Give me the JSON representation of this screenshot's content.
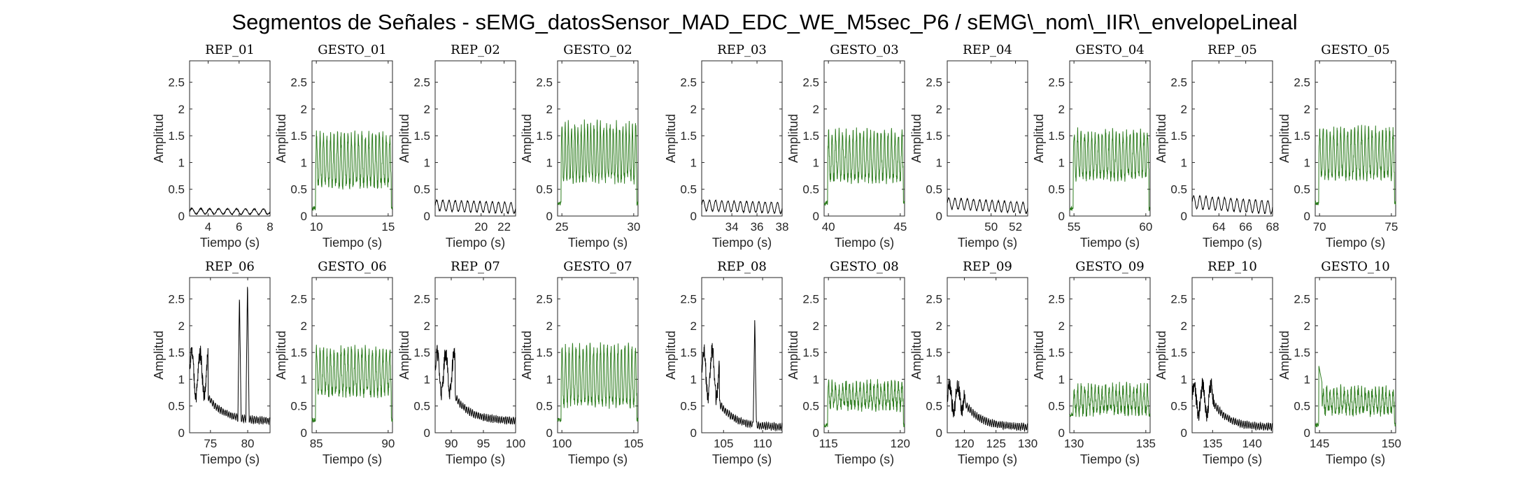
{
  "title": "Segmentos de Señales - sEMG_datosSensor_MAD_EDC_WE_M5sec_P6 / sEMG\\_nom\\_IIR\\_envelopeLineal",
  "colors": {
    "rep": "#000000",
    "gesto": "#2e7d1f"
  },
  "chart_data": [
    {
      "type": "line",
      "title": "REP_01",
      "kind": "rep",
      "xlabel": "Tiempo (s)",
      "ylabel": "Amplitud",
      "xlim": [
        2.8,
        8
      ],
      "ylim": [
        0,
        2.9
      ],
      "xticks": [
        "4",
        "6",
        "8"
      ],
      "yticks": [
        "0",
        "0.5",
        "1",
        "1.5",
        "2",
        "2.5"
      ],
      "signal": {
        "base": 0.09,
        "amp": 0.05,
        "cycles": 9,
        "decay_to": 0.08
      }
    },
    {
      "type": "line",
      "title": "GESTO_01",
      "kind": "gesto",
      "xlabel": "Tiempo (s)",
      "ylabel": "Amplitud",
      "xlim": [
        9.7,
        15.3
      ],
      "ylim": [
        0,
        2.9
      ],
      "xticks": [
        "10",
        "15"
      ],
      "yticks": [
        "0",
        "0.5",
        "1",
        "1.5",
        "2",
        "2.5"
      ],
      "signal": {
        "low": 0.6,
        "high": 1.5,
        "cycles": 22,
        "edge": 0.1
      }
    },
    {
      "type": "line",
      "title": "REP_02",
      "kind": "rep",
      "xlabel": "Tiempo (s)",
      "ylabel": "Amplitud",
      "xlim": [
        16,
        23
      ],
      "ylim": [
        0,
        2.9
      ],
      "xticks": [
        "20",
        "22"
      ],
      "yticks": [
        "0",
        "0.5",
        "1",
        "1.5",
        "2",
        "2.5"
      ],
      "signal": {
        "base": 0.2,
        "amp": 0.1,
        "cycles": 13,
        "decay_to": 0.15
      }
    },
    {
      "type": "line",
      "title": "GESTO_02",
      "kind": "gesto",
      "xlabel": "Tiempo (s)",
      "ylabel": "Amplitud",
      "xlim": [
        24.7,
        30.3
      ],
      "ylim": [
        0,
        2.9
      ],
      "xticks": [
        "25",
        "30"
      ],
      "yticks": [
        "0",
        "0.5",
        "1",
        "1.5",
        "2",
        "2.5"
      ],
      "signal": {
        "low": 0.7,
        "high": 1.7,
        "cycles": 24,
        "edge": 0.2
      }
    },
    {
      "type": "line",
      "title": "REP_03",
      "kind": "rep",
      "xlabel": "Tiempo (s)",
      "ylabel": "Amplitud",
      "xlim": [
        31.6,
        38
      ],
      "ylim": [
        0,
        2.9
      ],
      "xticks": [
        "34",
        "36",
        "38"
      ],
      "yticks": [
        "0",
        "0.5",
        "1",
        "1.5",
        "2",
        "2.5"
      ],
      "signal": {
        "base": 0.2,
        "amp": 0.1,
        "cycles": 13,
        "decay_to": 0.15
      }
    },
    {
      "type": "line",
      "title": "GESTO_03",
      "kind": "gesto",
      "xlabel": "Tiempo (s)",
      "ylabel": "Amplitud",
      "xlim": [
        39.7,
        45.3
      ],
      "ylim": [
        0,
        2.9
      ],
      "xticks": [
        "40",
        "45"
      ],
      "yticks": [
        "0",
        "0.5",
        "1",
        "1.5",
        "2",
        "2.5"
      ],
      "signal": {
        "low": 0.7,
        "high": 1.55,
        "cycles": 22,
        "edge": 0.2
      }
    },
    {
      "type": "line",
      "title": "REP_04",
      "kind": "rep",
      "xlabel": "Tiempo (s)",
      "ylabel": "Amplitud",
      "xlim": [
        46.4,
        53
      ],
      "ylim": [
        0,
        2.9
      ],
      "xticks": [
        "50",
        "52"
      ],
      "yticks": [
        "0",
        "0.5",
        "1",
        "1.5",
        "2",
        "2.5"
      ],
      "signal": {
        "base": 0.24,
        "amp": 0.1,
        "cycles": 13,
        "decay_to": 0.15
      }
    },
    {
      "type": "line",
      "title": "GESTO_04",
      "kind": "gesto",
      "xlabel": "Tiempo (s)",
      "ylabel": "Amplitud",
      "xlim": [
        54.7,
        60.3
      ],
      "ylim": [
        0,
        2.9
      ],
      "xticks": [
        "55",
        "60"
      ],
      "yticks": [
        "0",
        "0.5",
        "1",
        "1.5",
        "2",
        "2.5"
      ],
      "signal": {
        "low": 0.75,
        "high": 1.55,
        "cycles": 22,
        "edge": 0.1
      }
    },
    {
      "type": "line",
      "title": "REP_05",
      "kind": "rep",
      "xlabel": "Tiempo (s)",
      "ylabel": "Amplitud",
      "xlim": [
        62,
        68
      ],
      "ylim": [
        0,
        2.9
      ],
      "xticks": [
        "64",
        "66",
        "68"
      ],
      "yticks": [
        "0",
        "0.5",
        "1",
        "1.5",
        "2",
        "2.5"
      ],
      "signal": {
        "base": 0.26,
        "amp": 0.12,
        "cycles": 13,
        "decay_to": 0.16
      }
    },
    {
      "type": "line",
      "title": "GESTO_05",
      "kind": "gesto",
      "xlabel": "Tiempo (s)",
      "ylabel": "Amplitud",
      "xlim": [
        69.7,
        75.3
      ],
      "ylim": [
        0,
        2.9
      ],
      "xticks": [
        "70",
        "75"
      ],
      "yticks": [
        "0",
        "0.5",
        "1",
        "1.5",
        "2",
        "2.5"
      ],
      "signal": {
        "low": 0.75,
        "high": 1.6,
        "cycles": 22,
        "edge": 0.2
      }
    },
    {
      "type": "line",
      "title": "REP_06",
      "kind": "rep",
      "xlabel": "Tiempo (s)",
      "ylabel": "Amplitud",
      "xlim": [
        72.2,
        83
      ],
      "ylim": [
        0,
        2.9
      ],
      "xticks": [
        "75",
        "80"
      ],
      "yticks": [
        "0",
        "0.5",
        "1",
        "1.5",
        "2",
        "2.5"
      ],
      "signal": {
        "burst_until": 0.23,
        "burst_high": 1.5,
        "burst_low": 0.7,
        "tail": 0.22,
        "spikes": [
          [
            0.62,
            2.6
          ],
          [
            0.72,
            2.85
          ]
        ]
      }
    },
    {
      "type": "line",
      "title": "GESTO_06",
      "kind": "gesto",
      "xlabel": "Tiempo (s)",
      "ylabel": "Amplitud",
      "xlim": [
        84.7,
        90.3
      ],
      "ylim": [
        0,
        2.9
      ],
      "xticks": [
        "85",
        "90"
      ],
      "yticks": [
        "0",
        "0.5",
        "1",
        "1.5",
        "2",
        "2.5"
      ],
      "signal": {
        "low": 0.75,
        "high": 1.55,
        "cycles": 22,
        "edge": 0.2
      }
    },
    {
      "type": "line",
      "title": "REP_07",
      "kind": "rep",
      "xlabel": "Tiempo (s)",
      "ylabel": "Amplitud",
      "xlim": [
        87.5,
        100
      ],
      "ylim": [
        0,
        2.9
      ],
      "xticks": [
        "90",
        "95",
        "100"
      ],
      "yticks": [
        "0",
        "0.5",
        "1",
        "1.5",
        "2",
        "2.5"
      ],
      "signal": {
        "burst_until": 0.25,
        "burst_high": 1.5,
        "burst_low": 0.75,
        "tail": 0.22,
        "spikes": []
      }
    },
    {
      "type": "line",
      "title": "GESTO_07",
      "kind": "gesto",
      "xlabel": "Tiempo (s)",
      "ylabel": "Amplitud",
      "xlim": [
        99.7,
        105.3
      ],
      "ylim": [
        0,
        2.9
      ],
      "xticks": [
        "100",
        "105"
      ],
      "yticks": [
        "0",
        "0.5",
        "1",
        "1.5",
        "2",
        "2.5"
      ],
      "signal": {
        "low": 0.55,
        "high": 1.6,
        "cycles": 22,
        "edge": 0.2
      }
    },
    {
      "type": "line",
      "title": "REP_08",
      "kind": "rep",
      "xlabel": "Tiempo (s)",
      "ylabel": "Amplitud",
      "xlim": [
        102.2,
        112.5
      ],
      "ylim": [
        0,
        2.9
      ],
      "xticks": [
        "105",
        "110"
      ],
      "yticks": [
        "0",
        "0.5",
        "1",
        "1.5",
        "2",
        "2.5"
      ],
      "signal": {
        "burst_until": 0.22,
        "burst_high": 1.55,
        "burst_low": 0.65,
        "tail": 0.1,
        "spikes": [
          [
            0.66,
            2.15
          ]
        ]
      }
    },
    {
      "type": "line",
      "title": "GESTO_08",
      "kind": "gesto",
      "xlabel": "Tiempo (s)",
      "ylabel": "Amplitud",
      "xlim": [
        114.7,
        120.3
      ],
      "ylim": [
        0,
        2.9
      ],
      "xticks": [
        "115",
        "120"
      ],
      "yticks": [
        "0",
        "0.5",
        "1",
        "1.5",
        "2",
        "2.5"
      ],
      "signal": {
        "low": 0.5,
        "high": 0.9,
        "cycles": 22,
        "edge": 0.1
      }
    },
    {
      "type": "line",
      "title": "REP_09",
      "kind": "rep",
      "xlabel": "Tiempo (s)",
      "ylabel": "Amplitud",
      "xlim": [
        117.3,
        130
      ],
      "ylim": [
        0,
        2.9
      ],
      "xticks": [
        "120",
        "125",
        "130"
      ],
      "yticks": [
        "0",
        "0.5",
        "1",
        "1.5",
        "2",
        "2.5"
      ],
      "signal": {
        "burst_until": 0.22,
        "burst_high": 0.9,
        "burst_low": 0.4,
        "tail": 0.1,
        "spikes": []
      }
    },
    {
      "type": "line",
      "title": "GESTO_09",
      "kind": "gesto",
      "xlabel": "Tiempo (s)",
      "ylabel": "Amplitud",
      "xlim": [
        129.7,
        135.3
      ],
      "ylim": [
        0,
        2.9
      ],
      "xticks": [
        "130",
        "135"
      ],
      "yticks": [
        "0",
        "0.5",
        "1",
        "1.5",
        "2",
        "2.5"
      ],
      "signal": {
        "low": 0.4,
        "high": 0.85,
        "cycles": 22,
        "edge": 0.3
      }
    },
    {
      "type": "line",
      "title": "REP_10",
      "kind": "rep",
      "xlabel": "Tiempo (s)",
      "ylabel": "Amplitud",
      "xlim": [
        132.4,
        142.6
      ],
      "ylim": [
        0,
        2.9
      ],
      "xticks": [
        "135",
        "140"
      ],
      "yticks": [
        "0",
        "0.5",
        "1",
        "1.5",
        "2",
        "2.5"
      ],
      "signal": {
        "burst_until": 0.27,
        "burst_high": 0.9,
        "burst_low": 0.35,
        "tail": 0.1,
        "spikes": []
      }
    },
    {
      "type": "line",
      "title": "GESTO_10",
      "kind": "gesto",
      "xlabel": "Tiempo (s)",
      "ylabel": "Amplitud",
      "xlim": [
        144.7,
        150.3
      ],
      "ylim": [
        0,
        2.9
      ],
      "xticks": [
        "145",
        "150"
      ],
      "yticks": [
        "0",
        "0.5",
        "1",
        "1.5",
        "2",
        "2.5"
      ],
      "signal": {
        "low": 0.4,
        "high": 0.8,
        "cycles": 22,
        "edge": 0.1,
        "first_peak": 1.25
      }
    }
  ]
}
